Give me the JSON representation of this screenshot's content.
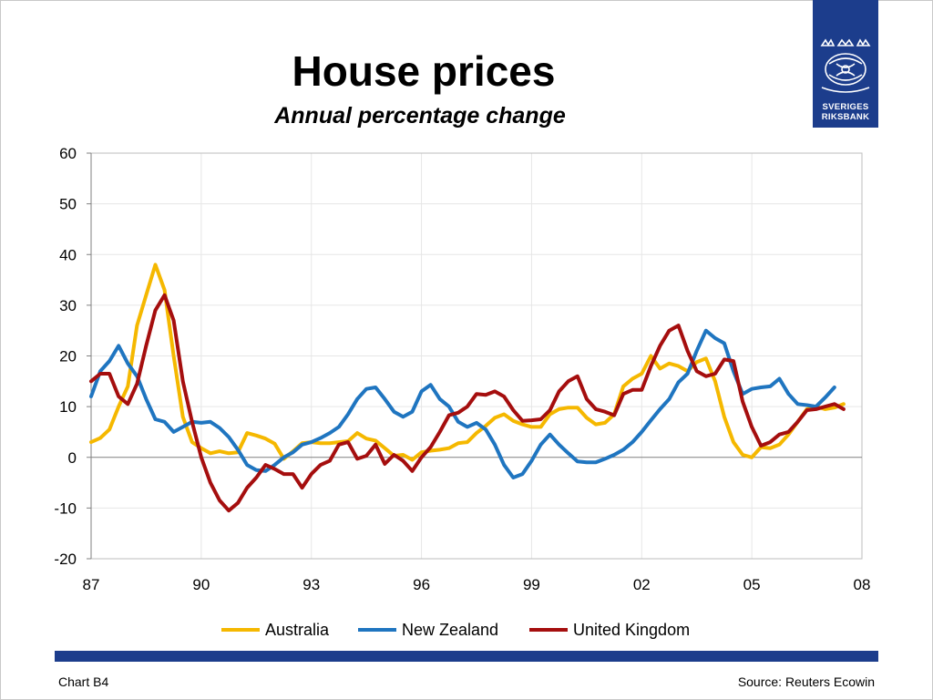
{
  "title": "House prices",
  "subtitle": "Annual percentage change",
  "logo": {
    "line1": "SVERIGES",
    "line2": "RIKSBANK",
    "bg_color": "#1c3d8c"
  },
  "footer": {
    "left": "Chart B4",
    "right": "Source: Reuters Ecowin"
  },
  "chart_data": {
    "type": "line",
    "ylim": [
      -20,
      60
    ],
    "yticks": [
      60,
      50,
      40,
      30,
      20,
      10,
      0,
      -10,
      -20
    ],
    "xlim": [
      1987,
      2008
    ],
    "xticks": [
      1987,
      1990,
      1993,
      1996,
      1999,
      2002,
      2005,
      2008
    ],
    "xtick_labels": [
      "87",
      "90",
      "93",
      "96",
      "99",
      "02",
      "05",
      "08"
    ],
    "grid": true,
    "legend_position": "bottom",
    "series": [
      {
        "name": "Australia",
        "color": "#f5b800",
        "x": [
          1987.0,
          1987.25,
          1987.5,
          1987.75,
          1988.0,
          1988.25,
          1988.5,
          1988.75,
          1989.0,
          1989.25,
          1989.5,
          1989.75,
          1990.0,
          1990.25,
          1990.5,
          1990.75,
          1991.0,
          1991.25,
          1991.5,
          1991.75,
          1992.0,
          1992.25,
          1992.5,
          1992.75,
          1993.0,
          1993.25,
          1993.5,
          1993.75,
          1994.0,
          1994.25,
          1994.5,
          1994.75,
          1995.0,
          1995.25,
          1995.5,
          1995.75,
          1996.0,
          1996.25,
          1996.5,
          1996.75,
          1997.0,
          1997.25,
          1997.5,
          1997.75,
          1998.0,
          1998.25,
          1998.5,
          1998.75,
          1999.0,
          1999.25,
          1999.5,
          1999.75,
          2000.0,
          2000.25,
          2000.5,
          2000.75,
          2001.0,
          2001.25,
          2001.5,
          2001.75,
          2002.0,
          2002.25,
          2002.5,
          2002.75,
          2003.0,
          2003.25,
          2003.5,
          2003.75,
          2004.0,
          2004.25,
          2004.5,
          2004.75,
          2005.0,
          2005.25,
          2005.5,
          2005.75,
          2006.0,
          2006.25,
          2006.5,
          2006.75,
          2007.0,
          2007.25,
          2007.5
        ],
        "values": [
          3,
          3.8,
          5.5,
          10,
          14,
          26,
          32,
          38,
          33,
          20,
          8,
          3,
          1.8,
          0.8,
          1.2,
          0.8,
          1,
          4.8,
          4.3,
          3.7,
          2.7,
          -0.3,
          1.2,
          2.8,
          3,
          2.8,
          2.8,
          3,
          3.2,
          4.8,
          3.7,
          3.3,
          1.8,
          0.3,
          0.5,
          -0.5,
          1,
          1.3,
          1.5,
          1.8,
          2.8,
          3,
          4.8,
          6.2,
          7.8,
          8.5,
          7.2,
          6.5,
          6,
          6,
          8.5,
          9.5,
          9.8,
          9.8,
          7.8,
          6.5,
          6.8,
          8.5,
          14,
          15.5,
          16.5,
          20,
          17.5,
          18.5,
          18,
          17,
          18.8,
          19.5,
          15,
          8,
          3,
          0.5,
          0,
          2,
          1.8,
          2.5,
          4.5,
          7,
          9.5,
          10,
          9.5,
          9.8,
          10.5
        ]
      },
      {
        "name": "New Zealand",
        "color": "#1f75c0",
        "x": [
          1987.0,
          1987.25,
          1987.5,
          1987.75,
          1988.0,
          1988.25,
          1988.5,
          1988.75,
          1989.0,
          1989.25,
          1989.5,
          1989.75,
          1990.0,
          1990.25,
          1990.5,
          1990.75,
          1991.0,
          1991.25,
          1991.5,
          1991.75,
          1992.0,
          1992.25,
          1992.5,
          1992.75,
          1993.0,
          1993.25,
          1993.5,
          1993.75,
          1994.0,
          1994.25,
          1994.5,
          1994.75,
          1995.0,
          1995.25,
          1995.5,
          1995.75,
          1996.0,
          1996.25,
          1996.5,
          1996.75,
          1997.0,
          1997.25,
          1997.5,
          1997.75,
          1998.0,
          1998.25,
          1998.5,
          1998.75,
          1999.0,
          1999.25,
          1999.5,
          1999.75,
          2000.0,
          2000.25,
          2000.5,
          2000.75,
          2001.0,
          2001.25,
          2001.5,
          2001.75,
          2002.0,
          2002.25,
          2002.5,
          2002.75,
          2003.0,
          2003.25,
          2003.5,
          2003.75,
          2004.0,
          2004.25,
          2004.5,
          2004.75,
          2005.0,
          2005.25,
          2005.5,
          2005.75,
          2006.0,
          2006.25,
          2006.5,
          2006.75,
          2007.0,
          2007.25
        ],
        "values": [
          12,
          17,
          19,
          22,
          18.5,
          16,
          11.5,
          7.5,
          7,
          5,
          6,
          7,
          6.8,
          7,
          5.8,
          4,
          1.5,
          -1.5,
          -2.5,
          -2.7,
          -1.5,
          0,
          1,
          2.5,
          3,
          3.8,
          4.8,
          6,
          8.5,
          11.5,
          13.5,
          13.8,
          11.5,
          9,
          8,
          9,
          13,
          14.3,
          11.5,
          10,
          7,
          6,
          6.8,
          5.5,
          2.5,
          -1.5,
          -4,
          -3.3,
          -0.7,
          2.5,
          4.5,
          2.5,
          0.8,
          -0.8,
          -1,
          -1,
          -0.3,
          0.5,
          1.5,
          3,
          5,
          7.3,
          9.5,
          11.5,
          14.8,
          16.5,
          21,
          25,
          23.5,
          22.5,
          17,
          12.5,
          13.5,
          13.8,
          14,
          15.5,
          12.5,
          10.5,
          10.3,
          10,
          11.8,
          13.8
        ]
      },
      {
        "name": "United Kingdom",
        "color": "#a50e0e",
        "x": [
          1987.0,
          1987.25,
          1987.5,
          1987.75,
          1988.0,
          1988.25,
          1988.5,
          1988.75,
          1989.0,
          1989.25,
          1989.5,
          1989.75,
          1990.0,
          1990.25,
          1990.5,
          1990.75,
          1991.0,
          1991.25,
          1991.5,
          1991.75,
          1992.0,
          1992.25,
          1992.5,
          1992.75,
          1993.0,
          1993.25,
          1993.5,
          1993.75,
          1994.0,
          1994.25,
          1994.5,
          1994.75,
          1995.0,
          1995.25,
          1995.5,
          1995.75,
          1996.0,
          1996.25,
          1996.5,
          1996.75,
          1997.0,
          1997.25,
          1997.5,
          1997.75,
          1998.0,
          1998.25,
          1998.5,
          1998.75,
          1999.0,
          1999.25,
          1999.5,
          1999.75,
          2000.0,
          2000.25,
          2000.5,
          2000.75,
          2001.0,
          2001.25,
          2001.5,
          2001.75,
          2002.0,
          2002.25,
          2002.5,
          2002.75,
          2003.0,
          2003.25,
          2003.5,
          2003.75,
          2004.0,
          2004.25,
          2004.5,
          2004.75,
          2005.0,
          2005.25,
          2005.5,
          2005.75,
          2006.0,
          2006.25,
          2006.5,
          2006.75,
          2007.0,
          2007.25,
          2007.5
        ],
        "values": [
          15,
          16.5,
          16.5,
          12,
          10.5,
          14.5,
          22,
          29,
          32,
          27,
          15,
          7,
          0,
          -5,
          -8.5,
          -10.5,
          -9,
          -6,
          -4,
          -1.5,
          -2.3,
          -3.3,
          -3.3,
          -6,
          -3.3,
          -1.5,
          -0.7,
          2.5,
          3,
          -0.3,
          0.3,
          2.5,
          -1.3,
          0.5,
          -0.7,
          -2.7,
          0,
          2,
          5,
          8.3,
          8.8,
          10,
          12.5,
          12.3,
          13,
          12,
          9.3,
          7.2,
          7.3,
          7.5,
          9.3,
          13,
          15,
          16,
          11.5,
          9.5,
          9,
          8.3,
          12.5,
          13.3,
          13.3,
          18,
          22,
          25,
          26,
          21,
          17,
          16,
          16.5,
          19.3,
          19,
          11,
          6,
          2.3,
          3,
          4.5,
          5,
          7,
          9.3,
          9.5,
          10,
          10.5,
          9.5
        ]
      }
    ]
  }
}
